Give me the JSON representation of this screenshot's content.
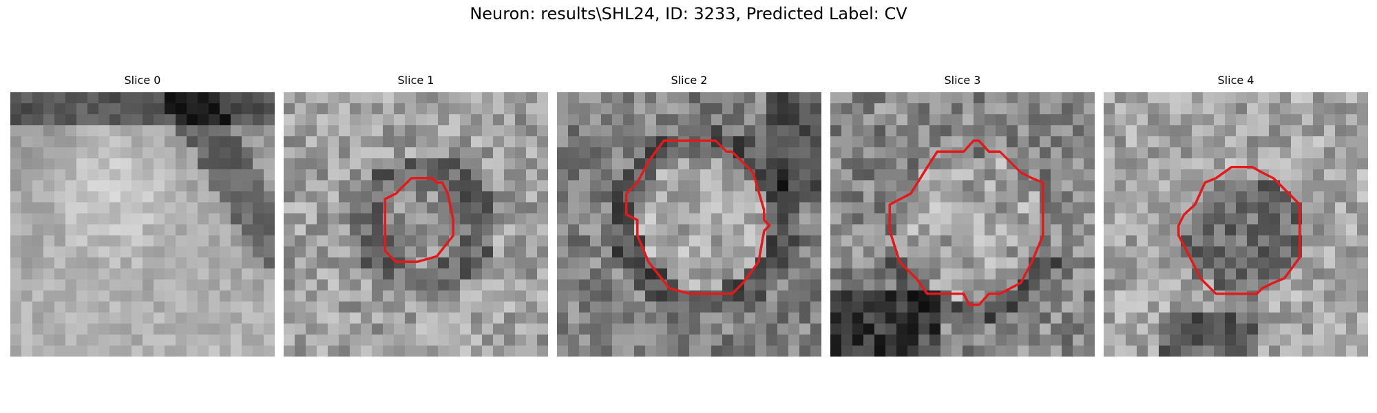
{
  "figure": {
    "title": "Neuron: results\\SHL24, ID: 3233, Predicted Label: CV"
  },
  "panels": [
    {
      "title": "Slice 0",
      "has_contour": false
    },
    {
      "title": "Slice 1",
      "has_contour": true
    },
    {
      "title": "Slice 2",
      "has_contour": true
    },
    {
      "title": "Slice 3",
      "has_contour": true
    },
    {
      "title": "Slice 4",
      "has_contour": true
    }
  ],
  "colors": {
    "contour": "#e31a1c",
    "background": "#ffffff"
  }
}
